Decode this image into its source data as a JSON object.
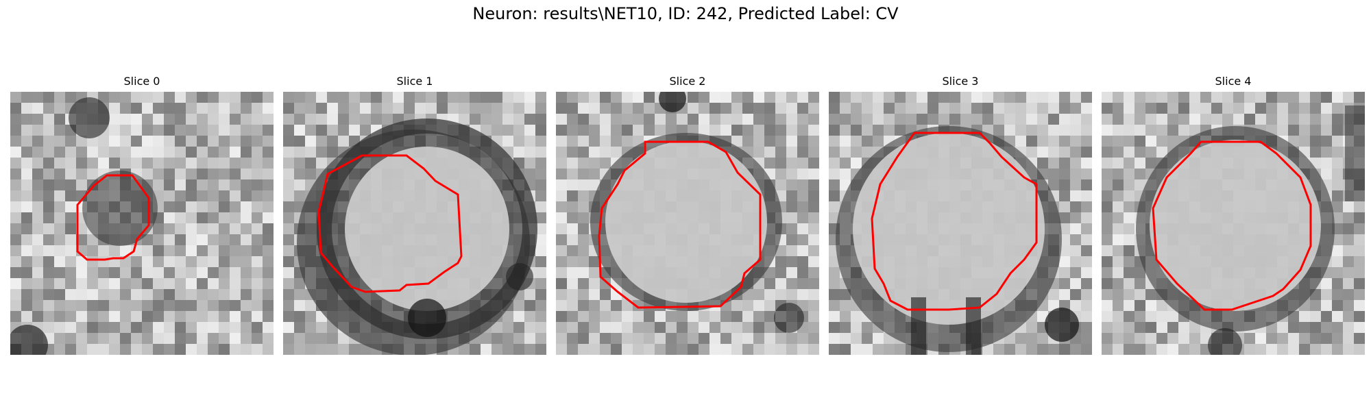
{
  "figure": {
    "title": "Neuron: results\\NET10, ID: 242, Predicted Label: CV",
    "outline_color": "#ff0000",
    "colormap": "gray"
  },
  "slices": [
    {
      "title": "Slice 0"
    },
    {
      "title": "Slice 1"
    },
    {
      "title": "Slice 2"
    },
    {
      "title": "Slice 3"
    },
    {
      "title": "Slice 4"
    }
  ]
}
